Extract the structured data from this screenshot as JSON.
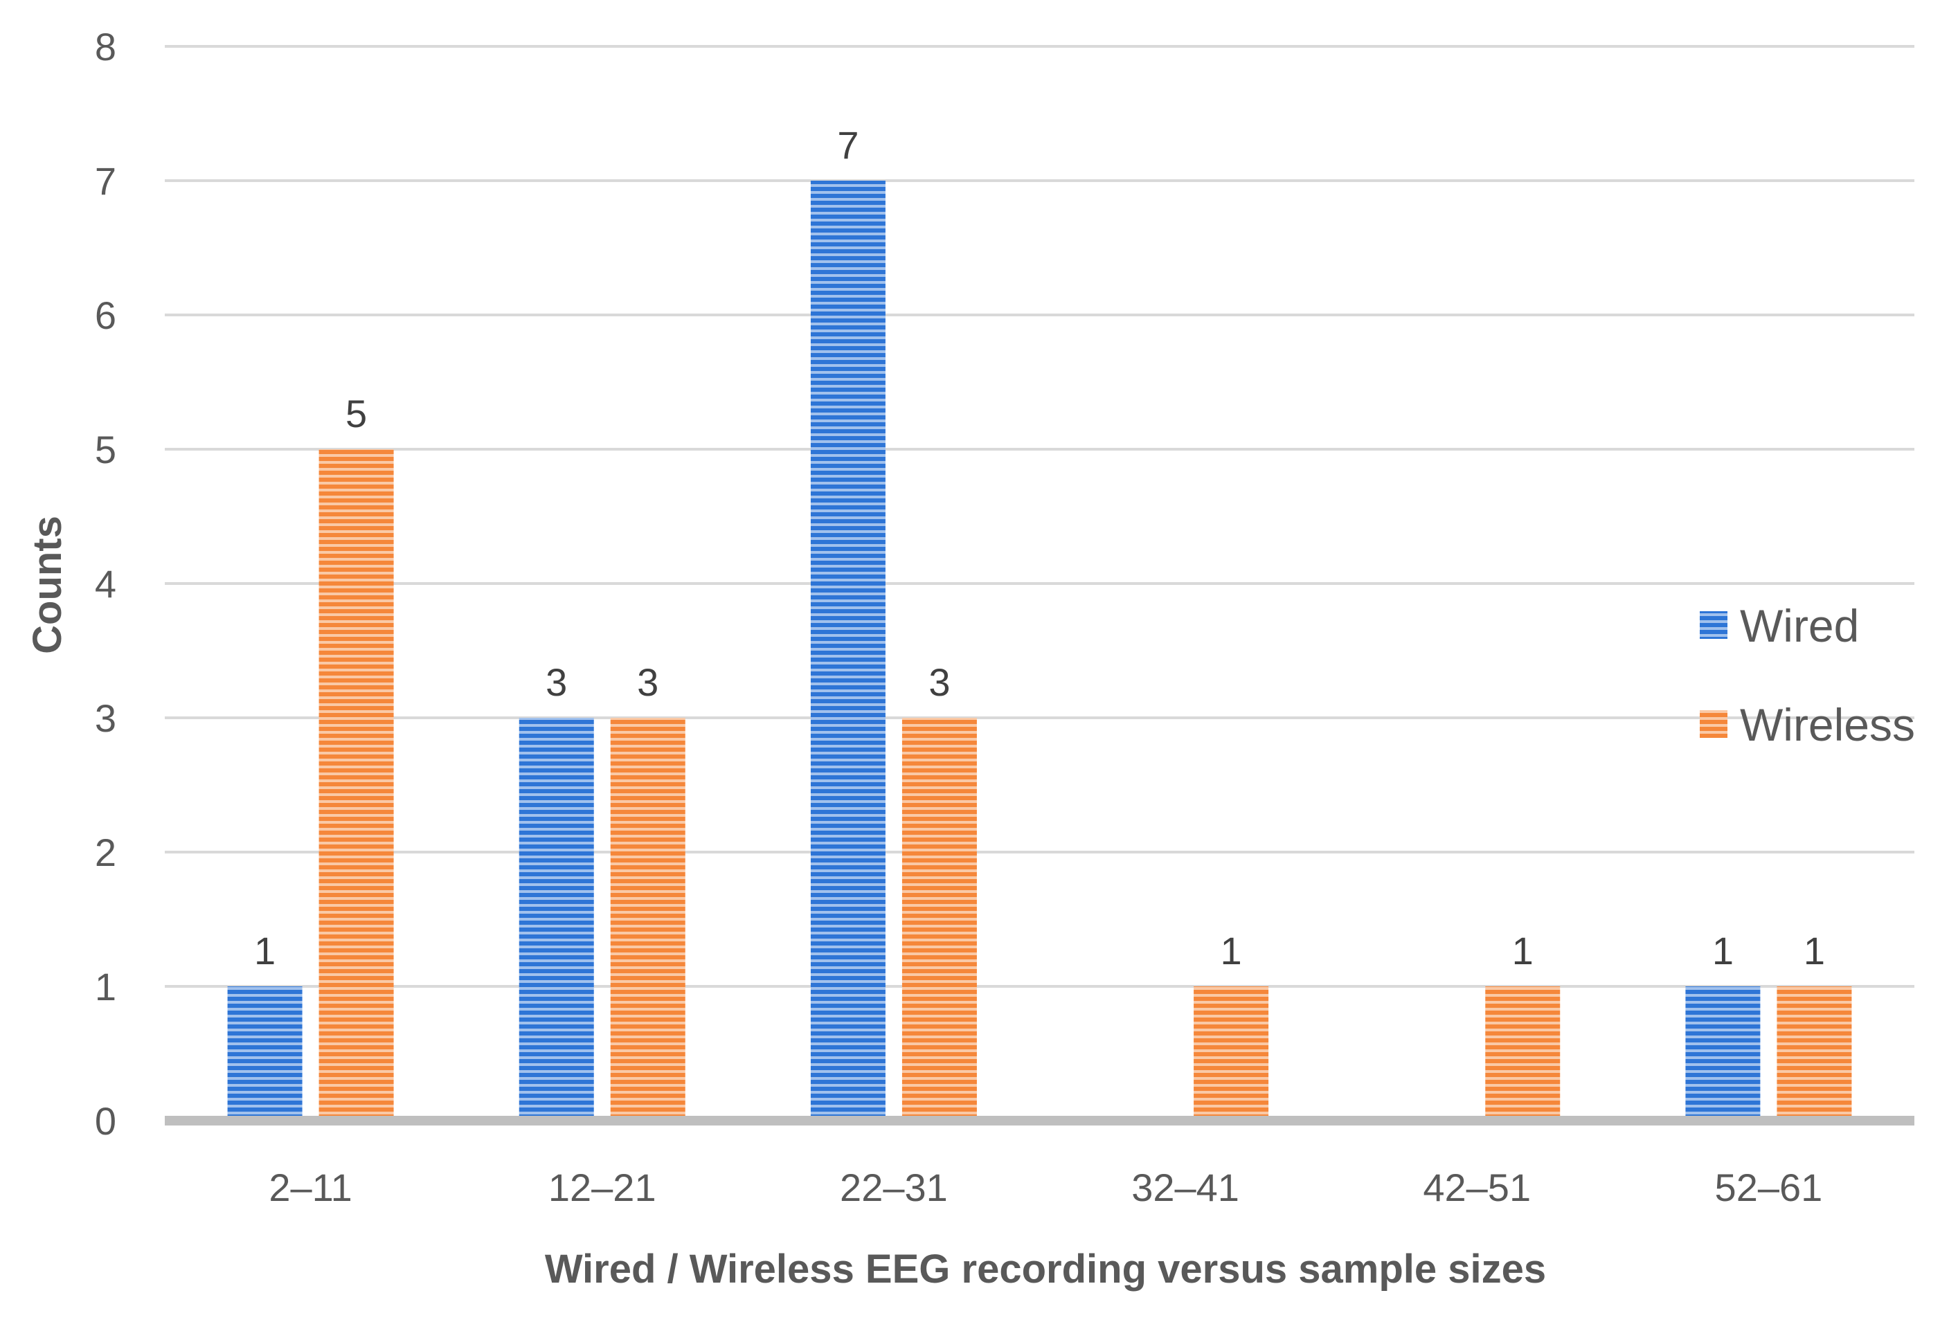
{
  "chart_data": {
    "type": "bar",
    "categories": [
      "2–11",
      "12–21",
      "22–31",
      "32–41",
      "42–51",
      "52–61"
    ],
    "series": [
      {
        "name": "Wired",
        "values": [
          1,
          3,
          7,
          0,
          0,
          1
        ],
        "color": "#2E75D6"
      },
      {
        "name": "Wireless",
        "values": [
          5,
          3,
          3,
          1,
          1,
          1
        ],
        "color": "#F5873A"
      }
    ],
    "data_labels": {
      "Wired": [
        "1",
        "3",
        "7",
        "",
        "",
        "1"
      ],
      "Wireless": [
        "5",
        "3",
        "3",
        "1",
        "1",
        "1"
      ]
    },
    "title": "",
    "xlabel": "Wired / Wireless EEG recording versus sample sizes",
    "ylabel": "Counts",
    "ylim": [
      0,
      8
    ],
    "yticks": [
      "0",
      "1",
      "2",
      "3",
      "4",
      "5",
      "6",
      "7",
      "8"
    ],
    "grid": true,
    "legend_position": "right",
    "colors": {
      "gridline": "#D9D9D9",
      "baseline": "#BFBFBF",
      "text": "#595959"
    }
  }
}
